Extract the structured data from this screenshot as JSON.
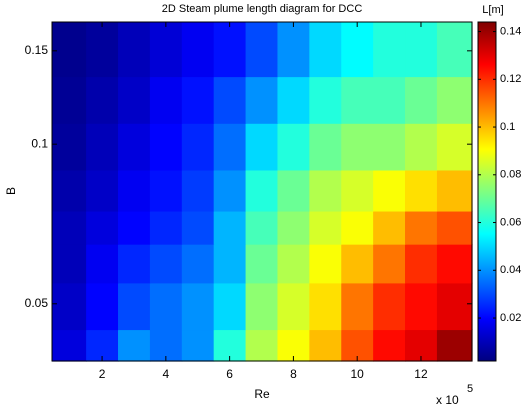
{
  "chart_data": {
    "type": "heatmap",
    "title": "2D Steam plume length diagram for DCC",
    "x_label": "Re",
    "y_label": "B",
    "x_multiplier": {
      "base": "x 10",
      "exponent": "5"
    },
    "colorbar_label": "L[m]",
    "colormap": "jet",
    "x": [
      1,
      2,
      3,
      4,
      5,
      6,
      7,
      8,
      9,
      10,
      11,
      12,
      13
    ],
    "y": [
      0.04,
      0.05,
      0.06,
      0.07,
      0.08,
      0.1,
      0.12,
      0.15
    ],
    "z": [
      [
        0.015,
        0.025,
        0.04,
        0.035,
        0.04,
        0.06,
        0.08,
        0.09,
        0.1,
        0.115,
        0.125,
        0.13,
        0.14
      ],
      [
        0.012,
        0.02,
        0.03,
        0.035,
        0.04,
        0.05,
        0.075,
        0.085,
        0.095,
        0.11,
        0.12,
        0.125,
        0.13
      ],
      [
        0.01,
        0.018,
        0.025,
        0.03,
        0.035,
        0.045,
        0.07,
        0.08,
        0.09,
        0.1,
        0.11,
        0.12,
        0.125
      ],
      [
        0.01,
        0.015,
        0.02,
        0.025,
        0.03,
        0.045,
        0.065,
        0.075,
        0.085,
        0.09,
        0.1,
        0.11,
        0.115
      ],
      [
        0.008,
        0.012,
        0.018,
        0.022,
        0.028,
        0.04,
        0.06,
        0.07,
        0.08,
        0.085,
        0.09,
        0.095,
        0.1
      ],
      [
        0.006,
        0.01,
        0.015,
        0.02,
        0.025,
        0.035,
        0.05,
        0.06,
        0.07,
        0.075,
        0.075,
        0.08,
        0.085
      ],
      [
        0.005,
        0.008,
        0.012,
        0.018,
        0.022,
        0.03,
        0.04,
        0.05,
        0.06,
        0.065,
        0.065,
        0.07,
        0.075
      ],
      [
        0.004,
        0.006,
        0.01,
        0.014,
        0.018,
        0.022,
        0.03,
        0.04,
        0.05,
        0.055,
        0.06,
        0.06,
        0.065
      ]
    ],
    "xlim": [
      0.43,
      13.6
    ],
    "xticks": [
      2,
      4,
      6,
      8,
      10,
      12
    ],
    "ylim": [
      0.039,
      0.17
    ],
    "yticks": [
      0.05,
      0.1,
      0.15
    ],
    "y_log": true,
    "clim": [
      0.002,
      0.144
    ],
    "cticks": [
      0.02,
      0.04,
      0.06,
      0.08,
      0.1,
      0.12,
      0.14
    ]
  }
}
